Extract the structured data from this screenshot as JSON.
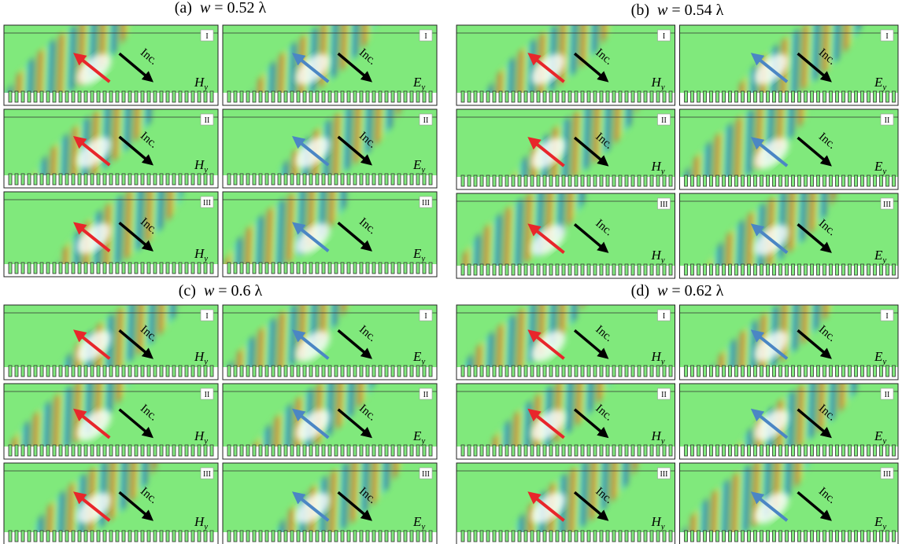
{
  "panels": [
    {
      "label": "(a)",
      "var": "w",
      "value": "= 0.52 λ",
      "rows": [
        {
          "label": "I",
          "cells": [
            {
              "field": "H",
              "sub": "y",
              "arrow": "Inc."
            },
            {
              "field": "E",
              "sub": "y",
              "arrow": "Inc."
            }
          ]
        },
        {
          "label": "II",
          "cells": [
            {
              "field": "H",
              "sub": "y",
              "arrow": "Inc."
            },
            {
              "field": "E",
              "sub": "y",
              "arrow": "Inc."
            }
          ]
        },
        {
          "label": "III",
          "cells": [
            {
              "field": "H",
              "sub": "y",
              "arrow": "Inc."
            },
            {
              "field": "E",
              "sub": "y",
              "arrow": "Inc."
            }
          ]
        }
      ]
    },
    {
      "label": "(b)",
      "var": "w",
      "value": "= 0.54 λ",
      "rows": [
        {
          "label": "I",
          "cells": [
            {
              "field": "H",
              "sub": "y",
              "arrow": "Inc."
            },
            {
              "field": "E",
              "sub": "y",
              "arrow": "Inc."
            }
          ]
        },
        {
          "label": "II",
          "cells": [
            {
              "field": "H",
              "sub": "y",
              "arrow": "Inc."
            },
            {
              "field": "E",
              "sub": "y",
              "arrow": "Inc."
            }
          ]
        },
        {
          "label": "III",
          "cells": [
            {
              "field": "H",
              "sub": "y",
              "arrow": "Inc."
            },
            {
              "field": "E",
              "sub": "y",
              "arrow": "Inc."
            }
          ]
        }
      ]
    },
    {
      "label": "(c)",
      "var": "w",
      "value": "= 0.6 λ",
      "rows": [
        {
          "label": "I",
          "cells": [
            {
              "field": "H",
              "sub": "y",
              "arrow": "Inc."
            },
            {
              "field": "E",
              "sub": "y",
              "arrow": "Inc."
            }
          ]
        },
        {
          "label": "II",
          "cells": [
            {
              "field": "H",
              "sub": "y",
              "arrow": "Inc."
            },
            {
              "field": "E",
              "sub": "y",
              "arrow": "Inc."
            }
          ]
        },
        {
          "label": "III",
          "cells": [
            {
              "field": "H",
              "sub": "y",
              "arrow": "Inc."
            },
            {
              "field": "E",
              "sub": "y",
              "arrow": "Inc."
            }
          ]
        }
      ]
    },
    {
      "label": "(d)",
      "var": "w",
      "value": "= 0.62 λ",
      "rows": [
        {
          "label": "I",
          "cells": [
            {
              "field": "H",
              "sub": "y",
              "arrow": "Inc."
            },
            {
              "field": "E",
              "sub": "y",
              "arrow": "Inc."
            }
          ]
        },
        {
          "label": "II",
          "cells": [
            {
              "field": "H",
              "sub": "y",
              "arrow": "Inc."
            },
            {
              "field": "E",
              "sub": "y",
              "arrow": "Inc."
            }
          ]
        },
        {
          "label": "III",
          "cells": [
            {
              "field": "H",
              "sub": "y",
              "arrow": "Inc."
            },
            {
              "field": "E",
              "sub": "y",
              "arrow": "Inc."
            }
          ]
        }
      ]
    }
  ]
}
